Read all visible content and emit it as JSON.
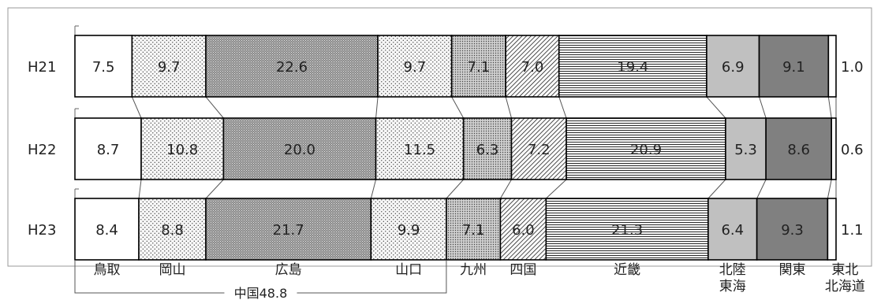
{
  "chart_data": {
    "type": "bar",
    "stacked": true,
    "orientation": "horizontal",
    "percent_stacked": true,
    "rows": [
      "H21",
      "H22",
      "H23"
    ],
    "segments": [
      {
        "label": [
          "鳥取"
        ],
        "color": "#ffffff",
        "pattern": "none"
      },
      {
        "label": [
          "岡山"
        ],
        "color": "#f2f2f2",
        "pattern": "dots"
      },
      {
        "label": [
          "広島"
        ],
        "color": "#7f7f7f",
        "pattern": "dense"
      },
      {
        "label": [
          "山口"
        ],
        "color": "#f2f2f2",
        "pattern": "dots"
      },
      {
        "label": [
          "九州"
        ],
        "color": "#d9d9d9",
        "pattern": "dots-dense"
      },
      {
        "label": [
          "四国"
        ],
        "color": "#ffffff",
        "pattern": "diagonal"
      },
      {
        "label": [
          "近畿"
        ],
        "color": "#ffffff",
        "pattern": "horizontal"
      },
      {
        "label": [
          "北陸",
          "東海"
        ],
        "color": "#c0c0c0",
        "pattern": "none"
      },
      {
        "label": [
          "関東"
        ],
        "color": "#808080",
        "pattern": "none"
      },
      {
        "label": [
          "東北",
          "北海道"
        ],
        "color": "#ffffff",
        "pattern": "none"
      }
    ],
    "values": [
      [
        7.5,
        9.7,
        22.6,
        9.7,
        7.1,
        7.0,
        19.4,
        6.9,
        9.1,
        1.0
      ],
      [
        8.7,
        10.8,
        20.0,
        11.5,
        6.3,
        7.2,
        20.9,
        5.3,
        8.6,
        0.6
      ],
      [
        8.4,
        8.8,
        21.7,
        9.9,
        7.1,
        6.0,
        21.3,
        6.4,
        9.3,
        1.1
      ]
    ],
    "value_labels": [
      [
        "7.5",
        "9.7",
        "22.6",
        "9.7",
        "7.1",
        "7.0",
        "19.4",
        "6.9",
        "9.1",
        "1.0"
      ],
      [
        "8.7",
        "10.8",
        "20.0",
        "11.5",
        "6.3",
        "7.2",
        "20.9",
        "5.3",
        "8.6",
        "0.6"
      ],
      [
        "8.4",
        "8.8",
        "21.7",
        "9.9",
        "7.1",
        "6.0",
        "21.3",
        "6.4",
        "9.3",
        "1.1"
      ]
    ],
    "group_bracket": {
      "label": "中国48.8",
      "from_segment": 0,
      "to_segment": 3
    },
    "title": "",
    "xlabel": "",
    "ylabel": "",
    "legend": "none",
    "grid": false
  }
}
